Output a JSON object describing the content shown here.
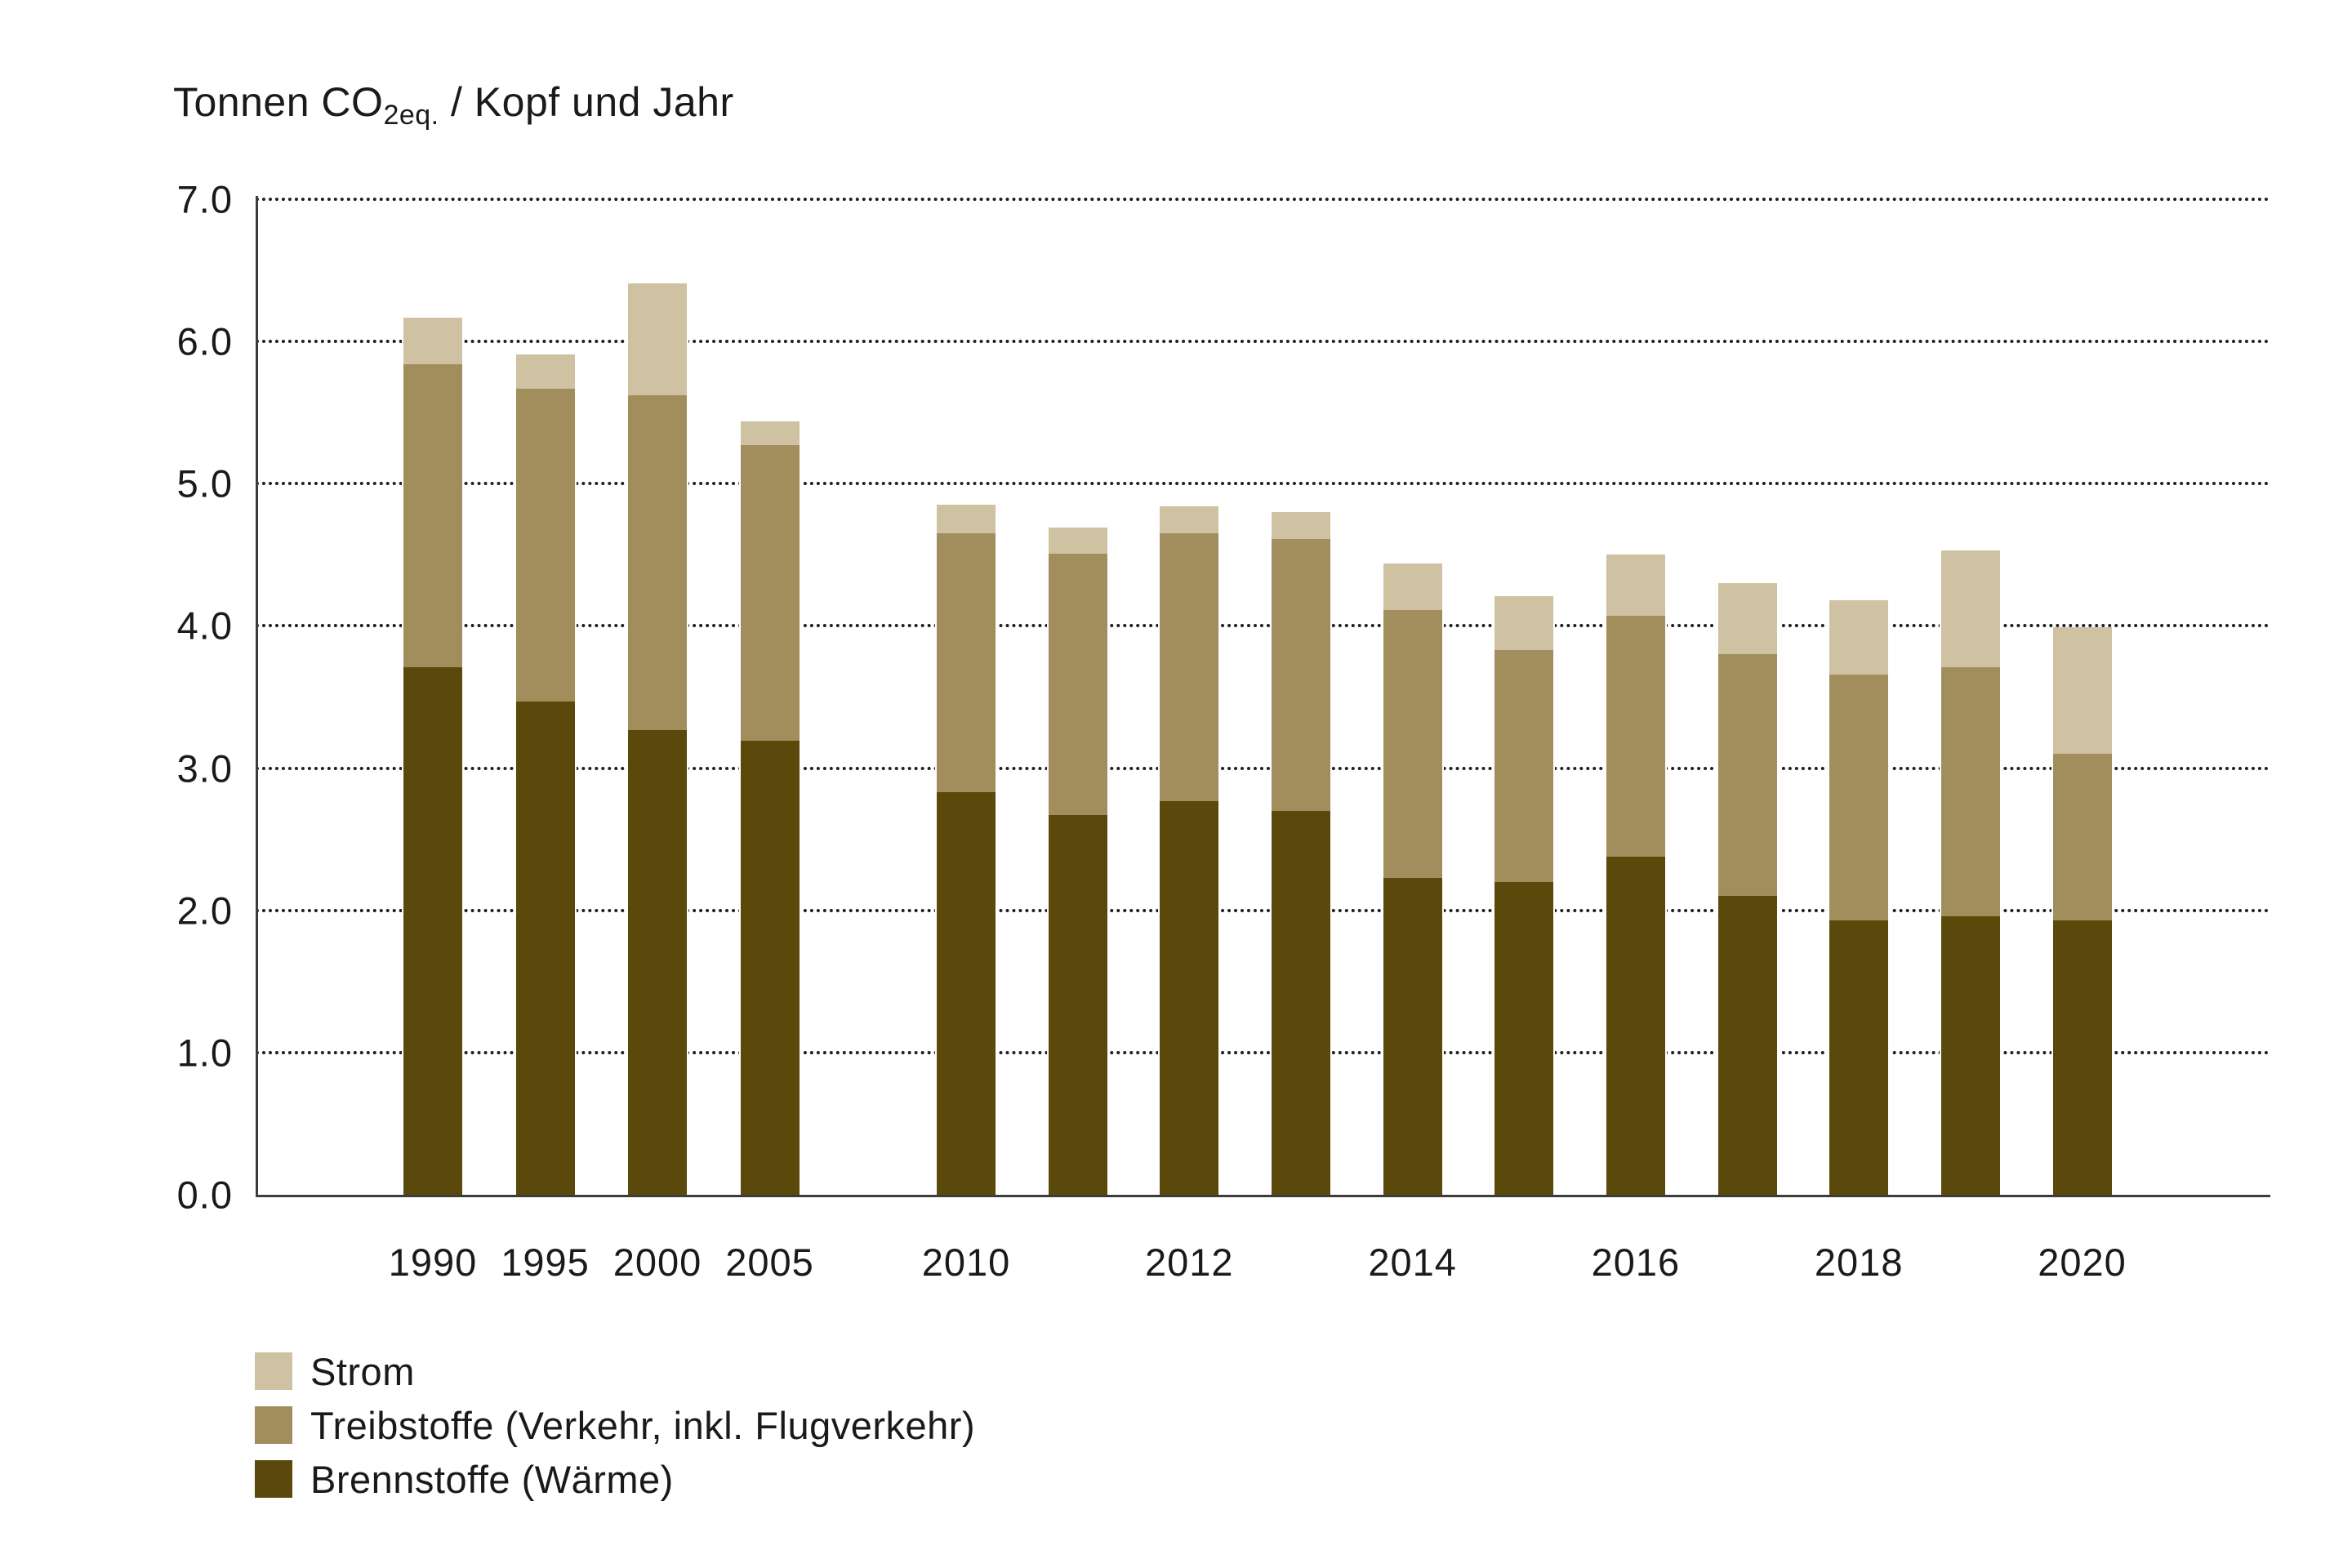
{
  "title": {
    "prefix": "Tonnen CO",
    "subscript": "2eq.",
    "suffix": " / Kopf und Jahr"
  },
  "colors": {
    "strom": "#cfc2a3",
    "treibstoffe": "#a18e5c",
    "brennstoffe": "#5b490b",
    "axis": "#3c3c3c",
    "grid": "#1f1f1f",
    "text": "#1a1a1a",
    "background": "#ffffff"
  },
  "y_axis": {
    "tick_labels": [
      "7.0",
      "6.0",
      "5.0",
      "4.0",
      "3.0",
      "2.0",
      "1.0",
      "0.0"
    ],
    "min": 0.0,
    "max": 7.0,
    "step": 1.0
  },
  "x_axis": {
    "tick_labels": [
      "1990",
      "1995",
      "2000",
      "2005",
      "2010",
      "2012",
      "2014",
      "2016",
      "2018",
      "2020"
    ]
  },
  "legend": {
    "items": [
      {
        "label": "Strom",
        "color": "#cfc2a3"
      },
      {
        "label": "Treibstoffe (Verkehr, inkl. Flugverkehr)",
        "color": "#a18e5c"
      },
      {
        "label": "Brennstoffe (Wärme)",
        "color": "#5b490b"
      }
    ]
  },
  "chart_data": {
    "type": "bar",
    "stacked": true,
    "title": "Tonnen CO2eq. / Kopf und Jahr",
    "categories": [
      1990,
      1995,
      2000,
      2005,
      2010,
      2011,
      2012,
      2013,
      2014,
      2015,
      2016,
      2017,
      2018,
      2019,
      2020
    ],
    "note": "years 2006-2009 omitted, visible gap between 2005 and 2010 groups",
    "series": [
      {
        "name": "Brennstoffe (Wärme)",
        "color": "#5b490b",
        "values": [
          3.71,
          3.47,
          3.27,
          3.19,
          2.83,
          2.67,
          2.77,
          2.7,
          2.23,
          2.2,
          2.38,
          2.1,
          1.93,
          1.96,
          1.93
        ]
      },
      {
        "name": "Treibstoffe (Verkehr, inkl. Flugverkehr)",
        "color": "#a18e5c",
        "values": [
          2.13,
          2.2,
          2.35,
          2.08,
          1.82,
          1.84,
          1.88,
          1.91,
          1.88,
          1.63,
          1.69,
          1.7,
          1.73,
          1.75,
          1.17
        ]
      },
      {
        "name": "Strom",
        "color": "#cfc2a3",
        "values": [
          0.33,
          0.24,
          0.79,
          0.17,
          0.2,
          0.18,
          0.19,
          0.19,
          0.33,
          0.38,
          0.43,
          0.5,
          0.52,
          0.82,
          0.89
        ]
      }
    ],
    "totals": [
      6.17,
      5.91,
      6.41,
      5.44,
      4.85,
      4.69,
      4.84,
      4.8,
      4.44,
      4.21,
      4.5,
      4.3,
      4.18,
      4.53,
      3.99
    ],
    "ylim": [
      0,
      7
    ],
    "ylabel": "Tonnen CO2eq. / Kopf und Jahr",
    "xlabel": "",
    "grid": "horizontal dotted",
    "legend_position": "bottom-left"
  }
}
